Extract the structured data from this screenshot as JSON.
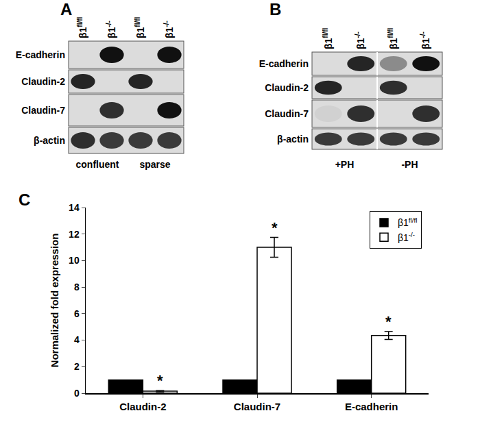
{
  "panels": [
    {
      "label": "A",
      "lanes": [
        {
          "base": "β1",
          "sup": "fl/fl"
        },
        {
          "base": "β1",
          "sup": "-/-"
        },
        {
          "base": "β1",
          "sup": "fl/fl"
        },
        {
          "base": "β1",
          "sup": "-/-"
        }
      ],
      "rows": [
        {
          "label": "E-cadherin",
          "bands": [
            0,
            1,
            0,
            1
          ]
        },
        {
          "label": "Claudin-2",
          "bands": [
            0.9,
            0,
            0.9,
            0
          ]
        },
        {
          "label": "Claudin-7",
          "bands": [
            0,
            0.85,
            0,
            1
          ]
        },
        {
          "label": "β-actin",
          "bands": [
            0.85,
            0.8,
            0.8,
            0.8
          ]
        }
      ],
      "groups": [
        {
          "label": "confluent",
          "lanes": [
            0,
            1
          ]
        },
        {
          "label": "sparse",
          "lanes": [
            2,
            3
          ]
        }
      ]
    },
    {
      "label": "B",
      "lanes": [
        {
          "base": "β1",
          "sup": "fl/fl"
        },
        {
          "base": "β1",
          "sup": "-/-"
        },
        {
          "base": "β1",
          "sup": "fl/fl"
        },
        {
          "base": "β1",
          "sup": "-/-"
        }
      ],
      "rows": [
        {
          "label": "E-cadherin",
          "bands": [
            0,
            0.9,
            0.4,
            1
          ]
        },
        {
          "label": "Claudin-2",
          "bands": [
            0.9,
            0,
            0.85,
            0
          ]
        },
        {
          "label": "Claudin-7",
          "bands": [
            0.05,
            0.85,
            0,
            0.85
          ]
        },
        {
          "label": "β-actin",
          "bands": [
            0.8,
            0.8,
            0.8,
            0.8
          ]
        }
      ],
      "groups": [
        {
          "label": "+PH",
          "lanes": [
            0,
            1
          ]
        },
        {
          "label": "-PH",
          "lanes": [
            2,
            3
          ]
        }
      ]
    }
  ],
  "chart_data": {
    "label": "C",
    "type": "bar",
    "categories": [
      "Claudin-2",
      "Claudin-7",
      "E-cadherin"
    ],
    "series": [
      {
        "name": {
          "base": "β1",
          "sup": "fl/fl"
        },
        "color": "#000000",
        "values": [
          1,
          1,
          1
        ]
      },
      {
        "name": {
          "base": "β1",
          "sup": "-/-"
        },
        "color": "#ffffff",
        "values": [
          0.15,
          11,
          4.35
        ],
        "errors": [
          0.05,
          0.75,
          0.3
        ]
      }
    ],
    "y_label": "Normalized fold expression",
    "ylim": [
      0,
      14
    ],
    "yticks": [
      0,
      2,
      4,
      6,
      8,
      10,
      12,
      14
    ],
    "grid": false,
    "legend": "upper right",
    "annotations": [
      {
        "text": "*",
        "category": "Claudin-2",
        "series": 1
      },
      {
        "text": "*",
        "category": "Claudin-7",
        "series": 1
      },
      {
        "text": "*",
        "category": "E-cadherin",
        "series": 1
      }
    ]
  }
}
